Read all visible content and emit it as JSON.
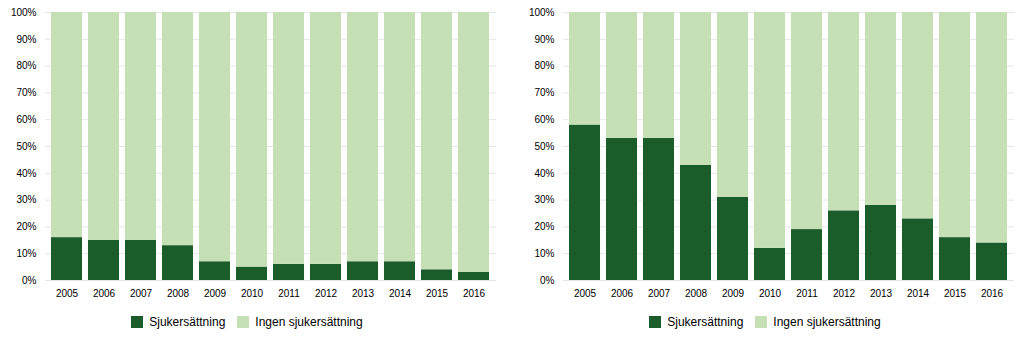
{
  "chart_data": [
    {
      "type": "bar",
      "stacked": true,
      "categories": [
        "2005",
        "2006",
        "2007",
        "2008",
        "2009",
        "2010",
        "2011",
        "2012",
        "2013",
        "2014",
        "2015",
        "2016"
      ],
      "series": [
        {
          "name": "Sjukersättning",
          "color": "#1a5c2a",
          "values": [
            16,
            15,
            15,
            13,
            7,
            5,
            6,
            6,
            7,
            7,
            4,
            3
          ]
        },
        {
          "name": "Ingen sjukersättning",
          "color": "#c5e0b4",
          "values": [
            84,
            85,
            85,
            87,
            93,
            95,
            94,
            94,
            93,
            93,
            96,
            97
          ]
        }
      ],
      "ylim": [
        0,
        100
      ],
      "yticks": [
        {
          "value": 0,
          "label": "0%"
        },
        {
          "value": 10,
          "label": "10%"
        },
        {
          "value": 20,
          "label": "20%"
        },
        {
          "value": 30,
          "label": "30%"
        },
        {
          "value": 40,
          "label": "40%"
        },
        {
          "value": 50,
          "label": "50%"
        },
        {
          "value": 60,
          "label": "60%"
        },
        {
          "value": 70,
          "label": "70%"
        },
        {
          "value": 80,
          "label": "80%"
        },
        {
          "value": 90,
          "label": "90%"
        },
        {
          "value": 100,
          "label": "100%"
        }
      ],
      "grid": true,
      "legend": "bottom"
    },
    {
      "type": "bar",
      "stacked": true,
      "categories": [
        "2005",
        "2006",
        "2007",
        "2008",
        "2009",
        "2010",
        "2011",
        "2012",
        "2013",
        "2014",
        "2015",
        "2016"
      ],
      "series": [
        {
          "name": "Sjukersättning",
          "color": "#1a5c2a",
          "values": [
            58,
            53,
            53,
            43,
            31,
            12,
            19,
            26,
            28,
            23,
            16,
            14
          ]
        },
        {
          "name": "Ingen sjukersättning",
          "color": "#c5e0b4",
          "values": [
            42,
            47,
            47,
            57,
            69,
            88,
            81,
            74,
            72,
            77,
            84,
            86
          ]
        }
      ],
      "ylim": [
        0,
        100
      ],
      "yticks": [
        {
          "value": 0,
          "label": "0%"
        },
        {
          "value": 10,
          "label": "10%"
        },
        {
          "value": 20,
          "label": "20%"
        },
        {
          "value": 30,
          "label": "30%"
        },
        {
          "value": 40,
          "label": "40%"
        },
        {
          "value": 50,
          "label": "50%"
        },
        {
          "value": 60,
          "label": "60%"
        },
        {
          "value": 70,
          "label": "70%"
        },
        {
          "value": 80,
          "label": "80%"
        },
        {
          "value": 90,
          "label": "90%"
        },
        {
          "value": 100,
          "label": "100%"
        }
      ],
      "grid": true,
      "legend": "bottom"
    }
  ]
}
